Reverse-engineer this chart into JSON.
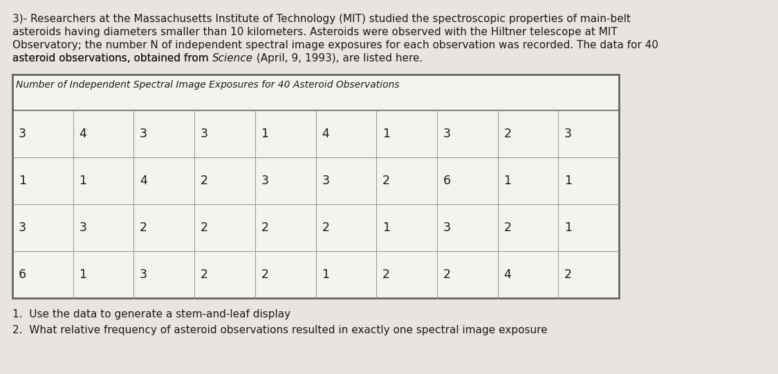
{
  "paragraph_lines": [
    "3)- Researchers at the Massachusetts Institute of Technology (MIT) studied the spectroscopic properties of main-belt",
    "asteroids having diameters smaller than 10 kilometers. Asteroids were observed with the Hiltner telescope at MIT",
    "Observatory; the number N of independent spectral image exposures for each observation was recorded. The data for 40",
    "asteroid observations, obtained from Science (April, 9, 1993), are listed here."
  ],
  "italic_word_line3": "Science",
  "table_title": "Number of Independent Spectral Image Exposures for 40 Asteroid Observations",
  "table_data": [
    [
      3,
      4,
      3,
      3,
      1,
      4,
      1,
      3,
      2,
      3
    ],
    [
      1,
      1,
      4,
      2,
      3,
      3,
      2,
      6,
      1,
      1
    ],
    [
      3,
      3,
      2,
      2,
      2,
      2,
      1,
      3,
      2,
      1
    ],
    [
      6,
      1,
      3,
      2,
      2,
      1,
      2,
      2,
      4,
      2
    ]
  ],
  "question1": "1.  Use the data to generate a stem-and-leaf display",
  "question2": "2.  What relative frequency of asteroid observations resulted in exactly one spectral image exposure",
  "bg_color": "#e8e4df",
  "table_bg": "#f5f3f0",
  "text_color": "#1a1a1a",
  "table_border_color": "#666666",
  "grid_color": "#999999",
  "font_size_para": 11.0,
  "font_size_table_title": 10.0,
  "font_size_table_data": 12.5,
  "font_size_questions": 11.0,
  "n_rows": 4,
  "n_cols": 10
}
